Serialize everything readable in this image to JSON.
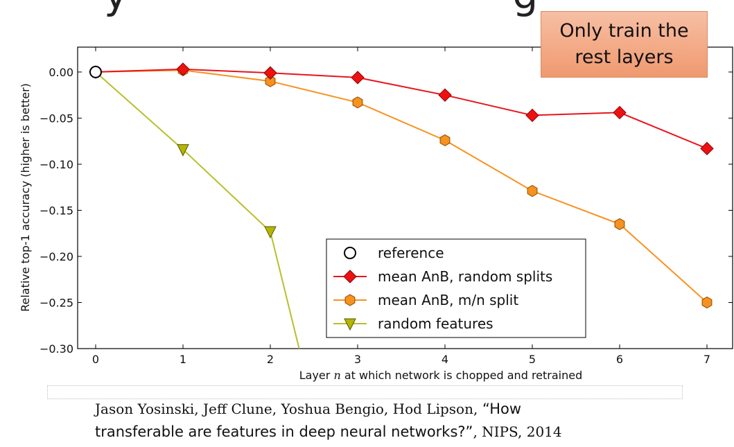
{
  "slide": {
    "heading_fragment": "y",
    "heading_fragment_right": "g"
  },
  "callout": {
    "line1": "Only train the",
    "line2": "rest layers",
    "bg_color": "#f4a886"
  },
  "citation": {
    "authors": "Jason Yosinski, Jeff Clune, Yoshua Bengio, Hod Lipson,",
    "title_part1": " “How",
    "title_part2": "transferable are features in deep neural networks?”",
    "venue": ", NIPS, 2014"
  },
  "chart_data": {
    "type": "line",
    "title": "",
    "xlabel_before": "Layer ",
    "xlabel_var": "n",
    "xlabel_after": " at which network is chopped and retrained",
    "ylabel": "Relative top-1 accuracy (higher is better)",
    "xlim": [
      -0.2,
      7.3
    ],
    "ylim": [
      -0.3,
      0.027
    ],
    "x_ticks": [
      "0",
      "1",
      "2",
      "3",
      "4",
      "5",
      "6",
      "7"
    ],
    "y_ticks": [
      {
        "value": 0.0,
        "label": "0.00"
      },
      {
        "value": -0.05,
        "label": "−0.05"
      },
      {
        "value": -0.1,
        "label": "−0.10"
      },
      {
        "value": -0.15,
        "label": "−0.15"
      },
      {
        "value": -0.2,
        "label": "−0.20"
      },
      {
        "value": -0.25,
        "label": "−0.25"
      },
      {
        "value": -0.3,
        "label": "−0.30"
      }
    ],
    "legend_position": "lower-right",
    "series": [
      {
        "name": "reference",
        "key": "reference",
        "color": "#000000",
        "fill": "#ffffff",
        "marker": "circle",
        "line": false,
        "x": [
          0
        ],
        "y": [
          0.0
        ]
      },
      {
        "name": "mean AnB, random splits",
        "key": "random-splits",
        "color": "#e8141c",
        "fill": "#ee1111",
        "marker": "diamond",
        "line": true,
        "x": [
          0,
          1,
          2,
          3,
          4,
          5,
          6,
          7
        ],
        "y": [
          0.0,
          0.003,
          -0.001,
          -0.006,
          -0.025,
          -0.047,
          -0.044,
          -0.083
        ]
      },
      {
        "name": "mean AnB, m/n split",
        "key": "mn-split",
        "color": "#f7921e",
        "fill": "#f7921e",
        "marker": "hexagon",
        "line": true,
        "x": [
          0,
          1,
          2,
          3,
          4,
          5,
          6,
          7
        ],
        "y": [
          0.0,
          0.002,
          -0.01,
          -0.033,
          -0.074,
          -0.129,
          -0.165,
          -0.25
        ]
      },
      {
        "name": "random features",
        "key": "random-features",
        "color": "#b8bf2a",
        "fill": "#b4b600",
        "marker": "triangle-down",
        "line": true,
        "x": [
          0,
          1,
          2,
          2.33
        ],
        "y": [
          0.0,
          -0.084,
          -0.173,
          -0.3
        ]
      }
    ]
  }
}
